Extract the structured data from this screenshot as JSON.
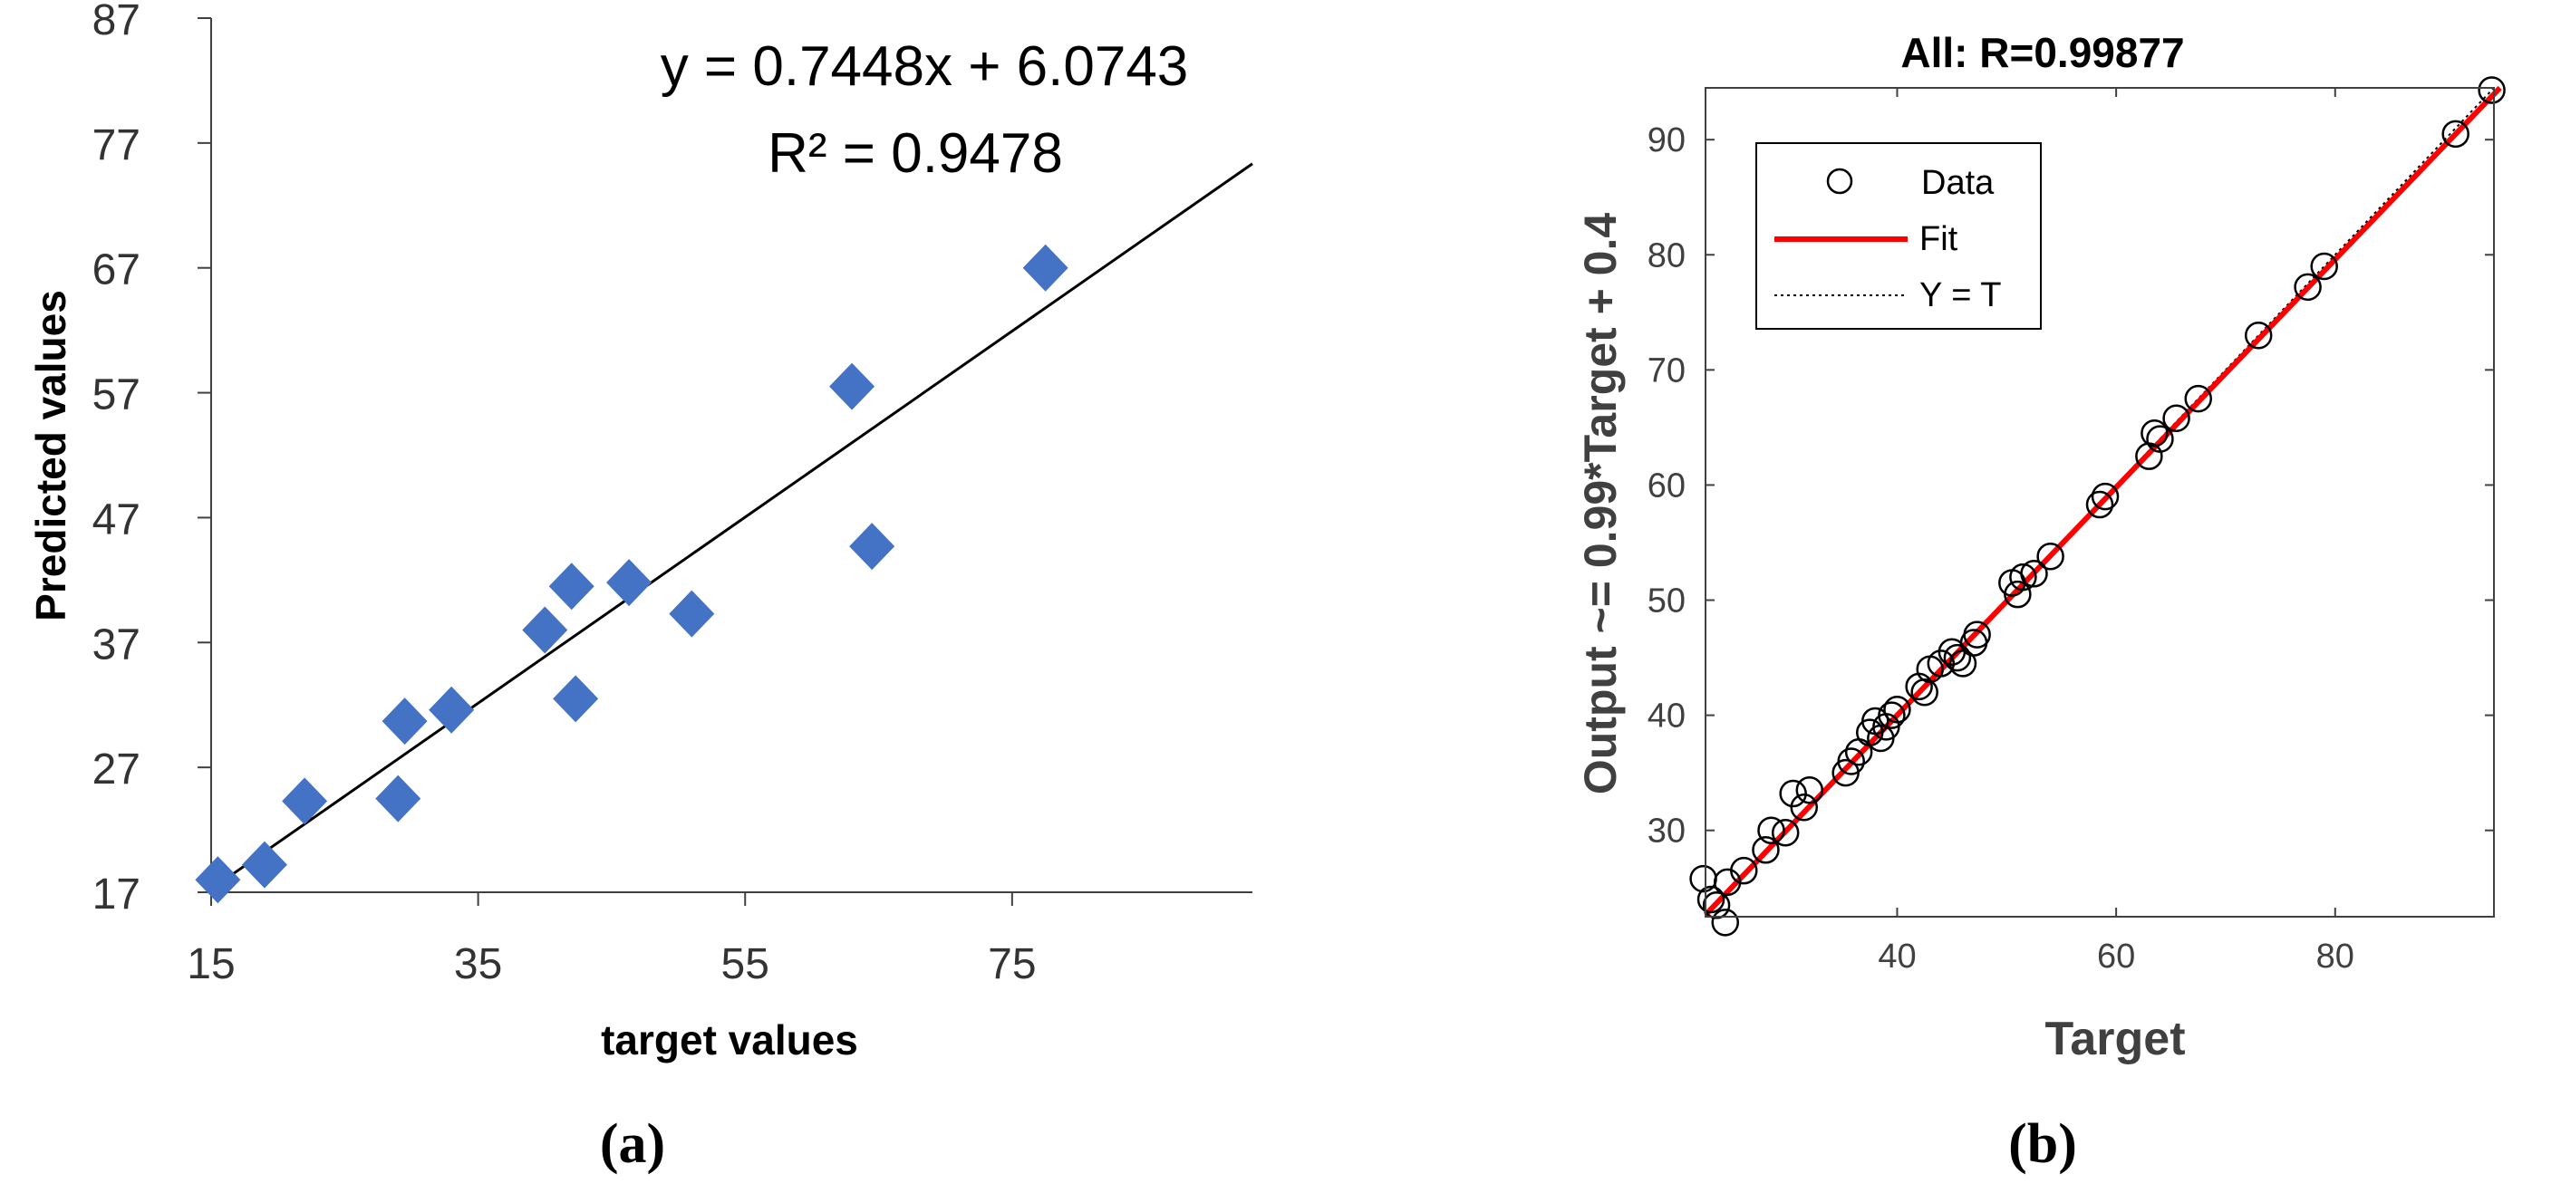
{
  "chart_data": [
    {
      "id": "a",
      "type": "scatter",
      "panel_label": "(a)",
      "xlabel": "target values",
      "ylabel": "Predicted values",
      "xticks": [
        "15",
        "35",
        "55",
        "75"
      ],
      "yticks": [
        "17",
        "27",
        "37",
        "47",
        "57",
        "67",
        "77",
        "87"
      ],
      "xlim": [
        15,
        93
      ],
      "ylim": [
        17,
        87
      ],
      "equation": "y = 0.7448x + 6.0743",
      "r2_text": "R² = 0.9478",
      "trendline": {
        "slope": 0.7448,
        "intercept": 6.0743,
        "x_range": [
          15.5,
          93
        ]
      },
      "marker": "diamond",
      "colors": {
        "marker": "#4472C4",
        "line": "#000000",
        "axis": "#404040"
      },
      "points": [
        {
          "x": 15.5,
          "y": 18.0
        },
        {
          "x": 19.0,
          "y": 19.2
        },
        {
          "x": 22.0,
          "y": 24.3
        },
        {
          "x": 29.0,
          "y": 24.5
        },
        {
          "x": 29.5,
          "y": 30.7
        },
        {
          "x": 33.0,
          "y": 31.6
        },
        {
          "x": 40.0,
          "y": 38.0
        },
        {
          "x": 42.0,
          "y": 41.5
        },
        {
          "x": 42.3,
          "y": 32.5
        },
        {
          "x": 46.3,
          "y": 41.8
        },
        {
          "x": 51.0,
          "y": 39.3
        },
        {
          "x": 63.0,
          "y": 57.5
        },
        {
          "x": 64.5,
          "y": 44.7
        },
        {
          "x": 77.5,
          "y": 67.0
        }
      ]
    },
    {
      "id": "b",
      "type": "scatter",
      "panel_label": "(b)",
      "title": "All: R=0.99877",
      "xlabel": "Target",
      "ylabel": "Output ~= 0.99*Target + 0.4",
      "xticks": [
        "40",
        "60",
        "80"
      ],
      "yticks": [
        "30",
        "40",
        "50",
        "60",
        "70",
        "80",
        "90"
      ],
      "xlim": [
        22.5,
        94.5
      ],
      "ylim": [
        22.5,
        94.5
      ],
      "fit": {
        "slope": 0.99,
        "intercept": 0.4
      },
      "identity_line": true,
      "legend": {
        "placement": "top-left",
        "entries": [
          "Data",
          "Fit",
          "Y = T"
        ]
      },
      "colors": {
        "fit": "#FF0000",
        "marker": "#000000",
        "identity": "#000000"
      },
      "points": [
        {
          "x": 22.3,
          "y": 25.8
        },
        {
          "x": 23.0,
          "y": 24.0
        },
        {
          "x": 23.5,
          "y": 23.5
        },
        {
          "x": 24.3,
          "y": 22.0
        },
        {
          "x": 24.5,
          "y": 25.5
        },
        {
          "x": 26.0,
          "y": 26.5
        },
        {
          "x": 28.0,
          "y": 28.3
        },
        {
          "x": 28.5,
          "y": 30.0
        },
        {
          "x": 29.8,
          "y": 29.8
        },
        {
          "x": 30.5,
          "y": 33.2
        },
        {
          "x": 31.5,
          "y": 32.0
        },
        {
          "x": 32.0,
          "y": 33.5
        },
        {
          "x": 35.3,
          "y": 35.0
        },
        {
          "x": 35.8,
          "y": 36.0
        },
        {
          "x": 36.5,
          "y": 36.8
        },
        {
          "x": 37.5,
          "y": 38.5
        },
        {
          "x": 38.0,
          "y": 39.5
        },
        {
          "x": 38.5,
          "y": 38.0
        },
        {
          "x": 39.0,
          "y": 39.0
        },
        {
          "x": 39.5,
          "y": 40.0
        },
        {
          "x": 40.0,
          "y": 40.5
        },
        {
          "x": 42.0,
          "y": 42.5
        },
        {
          "x": 42.5,
          "y": 42.0
        },
        {
          "x": 43.0,
          "y": 44.0
        },
        {
          "x": 44.0,
          "y": 44.5
        },
        {
          "x": 45.0,
          "y": 45.5
        },
        {
          "x": 45.5,
          "y": 45.0
        },
        {
          "x": 46.0,
          "y": 44.5
        },
        {
          "x": 47.0,
          "y": 46.3
        },
        {
          "x": 47.3,
          "y": 47.0
        },
        {
          "x": 50.5,
          "y": 51.5
        },
        {
          "x": 51.0,
          "y": 50.5
        },
        {
          "x": 51.5,
          "y": 52.0
        },
        {
          "x": 52.5,
          "y": 52.3
        },
        {
          "x": 54.0,
          "y": 53.8
        },
        {
          "x": 58.5,
          "y": 58.3
        },
        {
          "x": 59.0,
          "y": 59.0
        },
        {
          "x": 63.0,
          "y": 62.5
        },
        {
          "x": 63.5,
          "y": 64.5
        },
        {
          "x": 64.0,
          "y": 64.0
        },
        {
          "x": 65.5,
          "y": 65.8
        },
        {
          "x": 67.5,
          "y": 67.5
        },
        {
          "x": 73.0,
          "y": 73.0
        },
        {
          "x": 77.5,
          "y": 77.2
        },
        {
          "x": 79.0,
          "y": 79.0
        },
        {
          "x": 91.0,
          "y": 90.5
        },
        {
          "x": 94.3,
          "y": 94.3
        }
      ]
    }
  ]
}
